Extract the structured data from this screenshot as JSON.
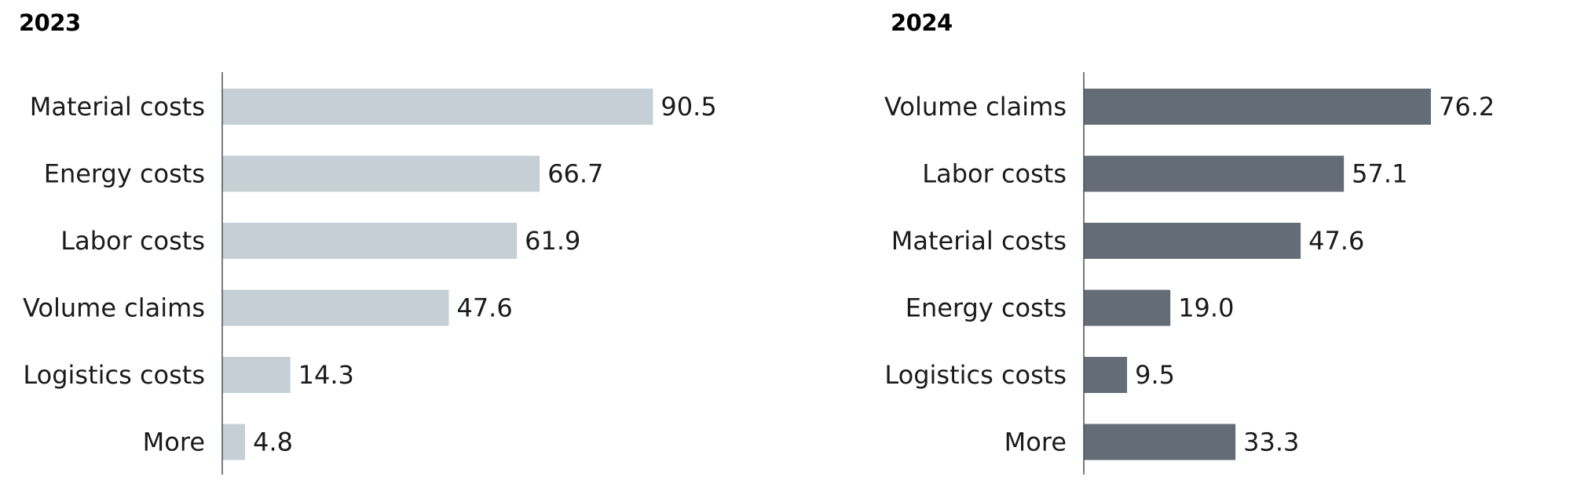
{
  "chart_data": [
    {
      "type": "bar",
      "orientation": "horizontal",
      "title": "2023",
      "categories": [
        "Material costs",
        "Energy costs",
        "Labor costs",
        "Volume claims",
        "Logistics costs",
        "More"
      ],
      "values": [
        90.5,
        66.7,
        61.9,
        47.6,
        14.3,
        4.8
      ],
      "value_labels": [
        "90.5",
        "66.7",
        "61.9",
        "47.6",
        "14.3",
        "4.8"
      ],
      "xlim": [
        0,
        100
      ],
      "grid": false,
      "bar_color": "#c5cfd5"
    },
    {
      "type": "bar",
      "orientation": "horizontal",
      "title": "2024",
      "categories": [
        "Volume claims",
        "Labor costs",
        "Material costs",
        "Energy costs",
        "Logistics costs",
        "More"
      ],
      "values": [
        76.2,
        57.1,
        47.6,
        19.0,
        9.5,
        33.3
      ],
      "value_labels": [
        "76.2",
        "57.1",
        "47.6",
        "19.0",
        "9.5",
        "33.3"
      ],
      "xlim": [
        0,
        100
      ],
      "grid": false,
      "bar_color": "#646c75"
    }
  ]
}
